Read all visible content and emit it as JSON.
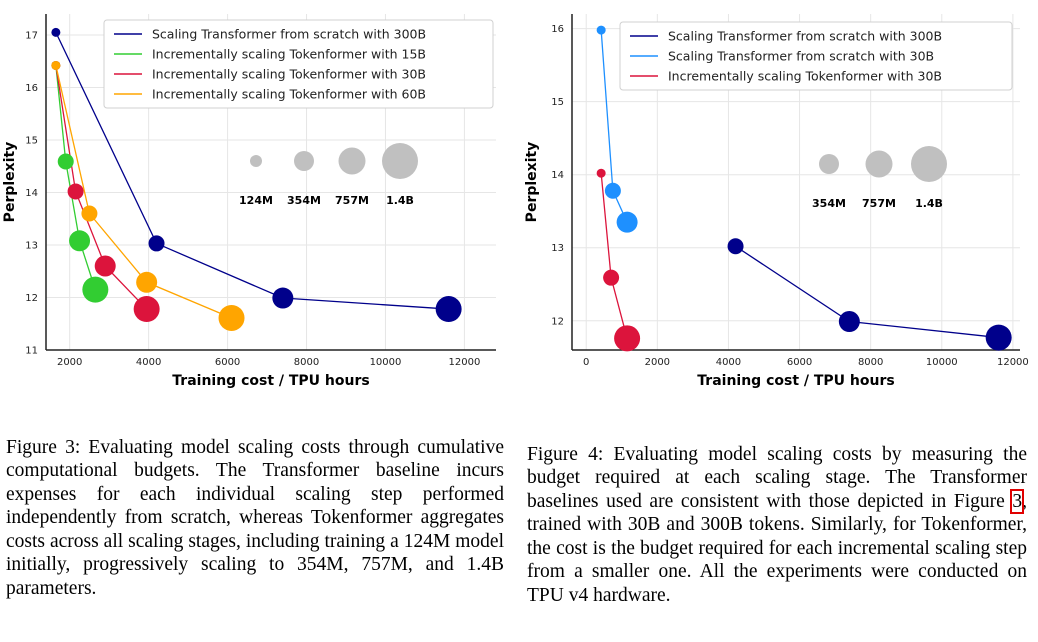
{
  "chart_data": [
    {
      "type": "line",
      "xlabel": "Training cost / TPU hours",
      "ylabel": "Perplexity",
      "xlim": [
        1400,
        12800
      ],
      "ylim": [
        11,
        17.4
      ],
      "xticks": [
        2000,
        4000,
        6000,
        8000,
        10000,
        12000
      ],
      "yticks": [
        11,
        12,
        13,
        14,
        15,
        16,
        17
      ],
      "grid": true,
      "legend_position": "top-right",
      "series": [
        {
          "name": "Scaling Transformer from scratch with 300B",
          "color": "#00008b",
          "x": [
            1650,
            4200,
            7400,
            11600
          ],
          "y": [
            17.05,
            13.03,
            11.99,
            11.78
          ],
          "sizes": [
            "124M",
            "354M",
            "757M",
            "1.4B"
          ]
        },
        {
          "name": "Incrementally scaling Tokenformer with 15B",
          "color": "#32cd32",
          "x": [
            1650,
            1900,
            2250,
            2650
          ],
          "y": [
            16.42,
            14.59,
            13.08,
            12.15
          ],
          "sizes": [
            "124M",
            "354M",
            "757M",
            "1.4B"
          ]
        },
        {
          "name": "Incrementally scaling Tokenformer with 30B",
          "color": "#dc143c",
          "x": [
            1650,
            2150,
            2900,
            3950
          ],
          "y": [
            16.42,
            14.02,
            12.6,
            11.78
          ],
          "sizes": [
            "124M",
            "354M",
            "757M",
            "1.4B"
          ]
        },
        {
          "name": "Incrementally scaling Tokenformer with 60B",
          "color": "#ffa500",
          "x": [
            1650,
            2500,
            3950,
            6100
          ],
          "y": [
            16.42,
            13.6,
            12.29,
            11.61
          ],
          "sizes": [
            "124M",
            "354M",
            "757M",
            "1.4B"
          ]
        }
      ],
      "size_legend": [
        "124M",
        "354M",
        "757M",
        "1.4B"
      ]
    },
    {
      "type": "line",
      "xlabel": "Training cost / TPU hours",
      "ylabel": "Perplexity",
      "xlim": [
        -400,
        12200
      ],
      "ylim": [
        11.6,
        16.2
      ],
      "xticks": [
        0,
        2000,
        4000,
        6000,
        8000,
        10000,
        12000
      ],
      "yticks": [
        12,
        13,
        14,
        15,
        16
      ],
      "grid": true,
      "legend_position": "top-right",
      "series": [
        {
          "name": "Scaling Transformer from scratch with 300B",
          "color": "#00008b",
          "x": [
            4200,
            7400,
            11600
          ],
          "y": [
            13.02,
            11.99,
            11.77
          ],
          "sizes": [
            "354M",
            "757M",
            "1.4B"
          ]
        },
        {
          "name": "Scaling Transformer from scratch with 30B",
          "color": "#1e90ff",
          "x": [
            420,
            750,
            1150
          ],
          "y": [
            15.98,
            13.78,
            13.35
          ],
          "sizes": [
            "124M",
            "354M",
            "757M"
          ]
        },
        {
          "name": "Incrementally scaling Tokenformer with 30B",
          "color": "#dc143c",
          "x": [
            420,
            700,
            1150
          ],
          "y": [
            14.02,
            12.59,
            11.76
          ],
          "sizes": [
            "124M",
            "354M",
            "1.4B"
          ]
        }
      ],
      "size_legend": [
        "354M",
        "757M",
        "1.4B"
      ]
    }
  ],
  "captions": {
    "fig3": "Figure 3: Evaluating model scaling costs through cumulative computational budgets. The Transformer baseline incurs expenses for each individual scaling step performed independently from scratch, whereas Tokenformer aggregates costs across all scaling stages, including training a 124M model initially, progressively scaling to 354M, 757M, and 1.4B parameters.",
    "fig4_before": "Figure 4: Evaluating model scaling costs by measuring the budget required at each scaling stage. The Transformer baselines used are consistent with those depicted in Figure ",
    "fig4_ref": "3",
    "fig4_after": ", trained with 30B and 300B tokens. Similarly, for Tokenformer, the cost is the budget required for each incremental scaling step from a smaller one. All the experiments were conducted on TPU v4 hardware."
  }
}
